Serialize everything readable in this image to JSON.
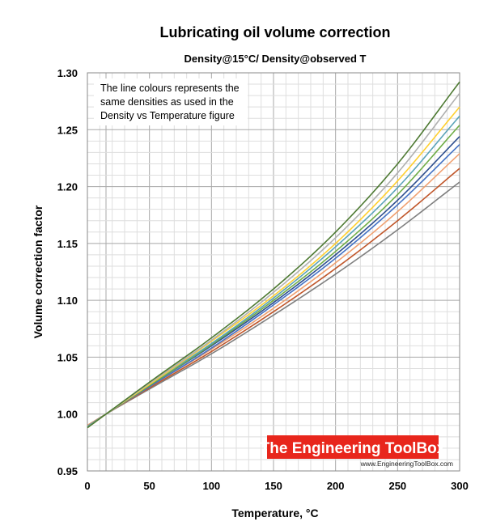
{
  "chart_data": {
    "type": "line",
    "title": "Lubricating oil volume correction",
    "subtitle": "Density@15°C/ Density@observed T",
    "xlabel": "Temperature, °C",
    "ylabel": "Volume correction factor",
    "xlim": [
      0,
      300
    ],
    "ylim": [
      0.95,
      1.3
    ],
    "x_ticks": [
      "0",
      "50",
      "100",
      "150",
      "200",
      "250",
      "300"
    ],
    "y_ticks": [
      "0.95",
      "1.00",
      "1.05",
      "1.10",
      "1.15",
      "1.20",
      "1.25",
      "1.30"
    ],
    "grid": true,
    "annotation": [
      "The line colours represents the",
      "same densities as used in the",
      "Density vs Temperature figure"
    ],
    "x": [
      0,
      15,
      50,
      100,
      150,
      200,
      250,
      300
    ],
    "series": [
      {
        "color": "#7f7f7f",
        "values": [
          0.99,
          1.0,
          1.022,
          1.053,
          1.087,
          1.123,
          1.162,
          1.204
        ]
      },
      {
        "color": "#c0562a",
        "values": [
          0.99,
          1.0,
          1.023,
          1.055,
          1.09,
          1.128,
          1.17,
          1.216
        ]
      },
      {
        "color": "#f0a070",
        "values": [
          0.99,
          1.0,
          1.024,
          1.057,
          1.093,
          1.133,
          1.178,
          1.229
        ]
      },
      {
        "color": "#4472c4",
        "values": [
          0.989,
          1.0,
          1.024,
          1.058,
          1.096,
          1.137,
          1.184,
          1.237
        ]
      },
      {
        "color": "#2e4f8f",
        "values": [
          0.989,
          1.0,
          1.025,
          1.06,
          1.098,
          1.14,
          1.188,
          1.244
        ]
      },
      {
        "color": "#70ad47",
        "values": [
          0.989,
          1.0,
          1.025,
          1.061,
          1.1,
          1.143,
          1.193,
          1.254
        ]
      },
      {
        "color": "#5ba3b8",
        "values": [
          0.989,
          1.0,
          1.026,
          1.062,
          1.102,
          1.147,
          1.199,
          1.262
        ]
      },
      {
        "color": "#ffd030",
        "values": [
          0.988,
          1.0,
          1.026,
          1.064,
          1.104,
          1.15,
          1.205,
          1.27
        ]
      },
      {
        "color": "#b0b0b0",
        "values": [
          0.988,
          1.0,
          1.027,
          1.065,
          1.107,
          1.155,
          1.212,
          1.282
        ]
      },
      {
        "color": "#4e7a33",
        "values": [
          0.988,
          1.0,
          1.028,
          1.067,
          1.11,
          1.16,
          1.22,
          1.292
        ]
      }
    ]
  },
  "watermark": {
    "name": "The Engineering ToolBox",
    "url": "www.EngineeringToolBox.com",
    "bg_color": "#e8261c"
  }
}
